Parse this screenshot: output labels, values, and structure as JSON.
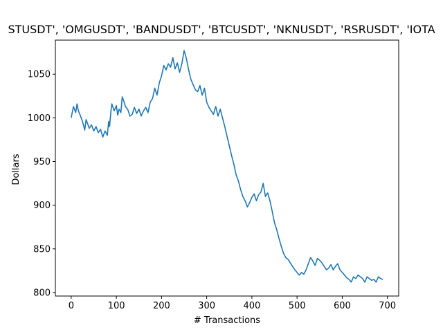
{
  "chart_data": {
    "type": "line",
    "title": "STUSDT', 'OMGUSDT', 'BANDUSDT', 'BTCUSDT', 'NKNUSDT', 'RSRUSDT', 'IOTA",
    "xlabel": "# Transactions",
    "ylabel": "Dollars",
    "xlim": [
      -35,
      725
    ],
    "ylim": [
      796,
      1089
    ],
    "xticks": [
      0,
      100,
      200,
      300,
      400,
      500,
      600,
      700
    ],
    "yticks": [
      800,
      850,
      900,
      950,
      1000,
      1050
    ],
    "grid": false,
    "legend": "none",
    "series": [
      {
        "color": "#1f77b4",
        "x": [
          0,
          5,
          10,
          13,
          16,
          20,
          25,
          30,
          33,
          36,
          40,
          45,
          50,
          55,
          60,
          65,
          70,
          75,
          80,
          83,
          85,
          88,
          90,
          95,
          100,
          103,
          106,
          110,
          113,
          116,
          120,
          125,
          130,
          135,
          140,
          145,
          150,
          155,
          160,
          165,
          170,
          175,
          180,
          185,
          190,
          195,
          200,
          205,
          210,
          215,
          220,
          225,
          230,
          235,
          240,
          245,
          250,
          255,
          260,
          265,
          270,
          275,
          280,
          285,
          290,
          295,
          300,
          305,
          310,
          315,
          320,
          325,
          330,
          335,
          340,
          345,
          350,
          355,
          360,
          365,
          370,
          375,
          380,
          385,
          390,
          395,
          400,
          405,
          410,
          415,
          420,
          425,
          430,
          435,
          440,
          445,
          450,
          455,
          460,
          465,
          470,
          475,
          480,
          485,
          490,
          495,
          500,
          505,
          510,
          515,
          520,
          525,
          530,
          535,
          540,
          545,
          550,
          555,
          560,
          565,
          570,
          575,
          580,
          585,
          590,
          595,
          600,
          605,
          610,
          615,
          620,
          625,
          630,
          635,
          640,
          645,
          650,
          655,
          660,
          665,
          670,
          675,
          680,
          685,
          690
        ],
        "y": [
          1000,
          1013,
          1006,
          1016,
          1008,
          1003,
          996,
          986,
          998,
          994,
          988,
          992,
          985,
          990,
          983,
          987,
          978,
          985,
          980,
          996,
          990,
          1008,
          1016,
          1008,
          1014,
          1003,
          1010,
          1006,
          1024,
          1020,
          1013,
          1010,
          1002,
          1004,
          1012,
          1005,
          1010,
          1002,
          1008,
          1012,
          1006,
          1018,
          1022,
          1034,
          1026,
          1040,
          1048,
          1060,
          1055,
          1062,
          1058,
          1069,
          1056,
          1063,
          1052,
          1062,
          1077,
          1068,
          1055,
          1044,
          1038,
          1032,
          1030,
          1037,
          1026,
          1034,
          1018,
          1012,
          1008,
          1004,
          1013,
          1002,
          1010,
          1000,
          990,
          979,
          968,
          957,
          947,
          935,
          928,
          918,
          910,
          905,
          898,
          903,
          909,
          913,
          905,
          912,
          915,
          925,
          910,
          914,
          905,
          893,
          880,
          872,
          862,
          853,
          845,
          840,
          838,
          834,
          830,
          826,
          823,
          820,
          823,
          821,
          826,
          833,
          840,
          836,
          831,
          839,
          837,
          834,
          830,
          826,
          828,
          832,
          826,
          830,
          833,
          826,
          823,
          820,
          817,
          815,
          812,
          818,
          816,
          820,
          818,
          816,
          812,
          818,
          816,
          814,
          815,
          812,
          818,
          816,
          815
        ]
      }
    ]
  }
}
